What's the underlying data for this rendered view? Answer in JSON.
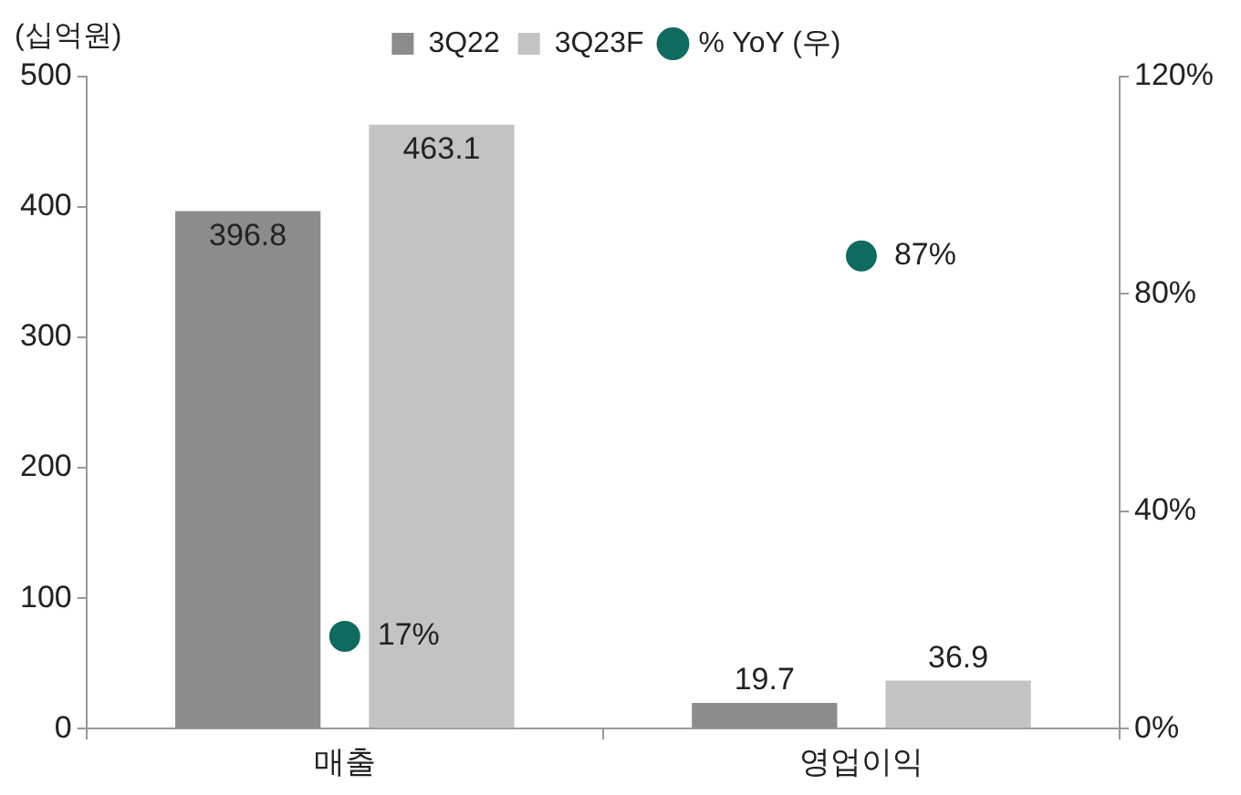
{
  "chart_data": {
    "type": "bar",
    "ylabel": "(십억원)",
    "categories": [
      "매출",
      "영업이익"
    ],
    "series": [
      {
        "name": "3Q22",
        "color": "#8c8c8c",
        "values": [
          396.8,
          19.7
        ],
        "value_labels": [
          "396.8",
          "19.7"
        ]
      },
      {
        "name": "3Q23F",
        "color": "#c3c3c3",
        "values": [
          463.1,
          36.9
        ],
        "value_labels": [
          "463.1",
          "36.9"
        ]
      },
      {
        "name": "% YoY (우)",
        "type": "scatter",
        "axis": "y2",
        "marker": "circle",
        "color": "#0f6b5f",
        "x": [
          "매출",
          "영업이익"
        ],
        "values": [
          17,
          87
        ],
        "value_labels": [
          "17%",
          "87%"
        ]
      }
    ],
    "ylim": [
      0,
      500
    ],
    "yticks": [
      0,
      100,
      200,
      300,
      400,
      500
    ],
    "y2lim": [
      0,
      120
    ],
    "y2ticks": [
      {
        "value": 0,
        "label": "0%"
      },
      {
        "value": 40,
        "label": "40%"
      },
      {
        "value": 80,
        "label": "80%"
      },
      {
        "value": 120,
        "label": "120%"
      }
    ],
    "legend": "top"
  }
}
